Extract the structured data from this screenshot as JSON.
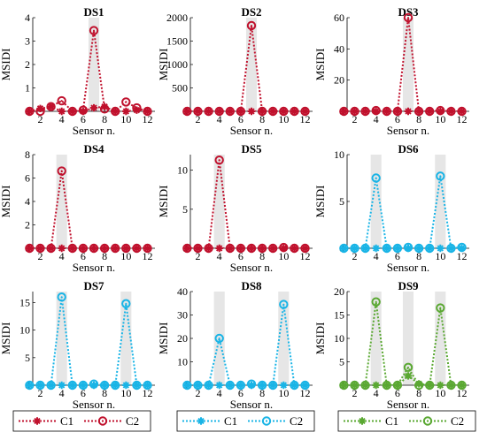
{
  "chart_data": [
    {
      "type": "line",
      "title": "DS1",
      "xlabel": "Sensor n.",
      "ylabel": "MSIDI",
      "ylim": [
        0,
        4
      ],
      "yticks": [
        0,
        1,
        2,
        3,
        4
      ],
      "xticks": [
        2,
        4,
        6,
        8,
        10,
        12
      ],
      "shaded": [
        7
      ],
      "color": "#c0112d",
      "x": [
        1,
        2,
        3,
        4,
        5,
        6,
        7,
        8,
        9,
        10,
        11,
        12
      ],
      "series": [
        {
          "name": "C1",
          "marker": "star",
          "values": [
            0,
            0.12,
            0.2,
            0,
            0,
            0,
            0.15,
            0.2,
            0,
            0,
            0.05,
            0
          ]
        },
        {
          "name": "C2",
          "marker": "circle",
          "values": [
            0,
            0,
            0.2,
            0.45,
            0,
            0.05,
            3.45,
            0.1,
            0,
            0.4,
            0.15,
            0
          ]
        }
      ]
    },
    {
      "type": "line",
      "title": "DS2",
      "xlabel": "Sensor n.",
      "ylabel": "MSIDI",
      "ylim": [
        0,
        2000
      ],
      "yticks": [
        0,
        500,
        1000,
        1500,
        2000
      ],
      "xticks": [
        2,
        4,
        6,
        8,
        10,
        12
      ],
      "shaded": [
        7
      ],
      "color": "#c0112d",
      "x": [
        1,
        2,
        3,
        4,
        5,
        6,
        7,
        8,
        9,
        10,
        11,
        12
      ],
      "series": [
        {
          "name": "C1",
          "marker": "star",
          "values": [
            0,
            0,
            0,
            0,
            0,
            0,
            0,
            0,
            0,
            0,
            0,
            0
          ]
        },
        {
          "name": "C2",
          "marker": "circle",
          "values": [
            0,
            0,
            0,
            0,
            0,
            0,
            1830,
            0,
            0,
            0,
            0,
            0
          ]
        }
      ]
    },
    {
      "type": "line",
      "title": "DS3",
      "xlabel": "Sensor n.",
      "ylabel": "MSIDI",
      "ylim": [
        0,
        60
      ],
      "yticks": [
        0,
        20,
        40,
        60
      ],
      "xticks": [
        2,
        4,
        6,
        8,
        10,
        12
      ],
      "shaded": [
        7
      ],
      "color": "#c0112d",
      "x": [
        1,
        2,
        3,
        4,
        5,
        6,
        7,
        8,
        9,
        10,
        11,
        12
      ],
      "series": [
        {
          "name": "C1",
          "marker": "star",
          "values": [
            0,
            0,
            0,
            0,
            0,
            0,
            0,
            0,
            0,
            0,
            0,
            0
          ]
        },
        {
          "name": "C2",
          "marker": "circle",
          "values": [
            0,
            0,
            0,
            0.5,
            0,
            0,
            60,
            0,
            0,
            0.5,
            0,
            0
          ]
        }
      ]
    },
    {
      "type": "line",
      "title": "DS4",
      "xlabel": "Sensor n.",
      "ylabel": "MSIDI",
      "ylim": [
        0,
        8
      ],
      "yticks": [
        0,
        2,
        4,
        6,
        8
      ],
      "xticks": [
        2,
        4,
        6,
        8,
        10,
        12
      ],
      "shaded": [
        4
      ],
      "color": "#c0112d",
      "x": [
        1,
        2,
        3,
        4,
        5,
        6,
        7,
        8,
        9,
        10,
        11,
        12
      ],
      "series": [
        {
          "name": "C1",
          "marker": "star",
          "values": [
            0,
            0,
            0,
            0,
            0,
            0,
            0,
            0,
            0,
            0,
            0,
            0
          ]
        },
        {
          "name": "C2",
          "marker": "circle",
          "values": [
            0,
            0,
            0,
            6.6,
            0,
            0,
            0,
            0,
            0,
            0,
            0,
            0
          ]
        }
      ]
    },
    {
      "type": "line",
      "title": "DS5",
      "xlabel": "Sensor n.",
      "ylabel": "MSIDI",
      "ylim": [
        0,
        12
      ],
      "yticks": [
        0,
        5,
        10
      ],
      "xticks": [
        2,
        4,
        6,
        8,
        10,
        12
      ],
      "shaded": [
        4
      ],
      "color": "#c0112d",
      "x": [
        1,
        2,
        3,
        4,
        5,
        6,
        7,
        8,
        9,
        10,
        11,
        12
      ],
      "series": [
        {
          "name": "C1",
          "marker": "star",
          "values": [
            0,
            0,
            0,
            0,
            0,
            0,
            0,
            0,
            0,
            0,
            0,
            0
          ]
        },
        {
          "name": "C2",
          "marker": "circle",
          "values": [
            0,
            0,
            0,
            11.3,
            0,
            0,
            0,
            0,
            0,
            0.1,
            0,
            0
          ]
        }
      ]
    },
    {
      "type": "line",
      "title": "DS6",
      "xlabel": "Sensor n.",
      "ylabel": "MSIDI",
      "ylim": [
        0,
        10
      ],
      "yticks": [
        0,
        5,
        10
      ],
      "xticks": [
        2,
        4,
        6,
        8,
        10,
        12
      ],
      "shaded": [
        4,
        10
      ],
      "color": "#19b4e6",
      "x": [
        1,
        2,
        3,
        4,
        5,
        6,
        7,
        8,
        9,
        10,
        11,
        12
      ],
      "series": [
        {
          "name": "C1",
          "marker": "star",
          "values": [
            0,
            0,
            0,
            0,
            0,
            0,
            0,
            0,
            0,
            0,
            0,
            0
          ]
        },
        {
          "name": "C2",
          "marker": "circle",
          "values": [
            0,
            0,
            0,
            7.5,
            0,
            0,
            0.1,
            0,
            0,
            7.7,
            0,
            0.1
          ]
        }
      ]
    },
    {
      "type": "line",
      "title": "DS7",
      "xlabel": "Sensor n.",
      "ylabel": "MSIDI",
      "ylim": [
        0,
        17
      ],
      "yticks": [
        0,
        5,
        10,
        15
      ],
      "xticks": [
        2,
        4,
        6,
        8,
        10,
        12
      ],
      "shaded": [
        4,
        10
      ],
      "color": "#19b4e6",
      "x": [
        1,
        2,
        3,
        4,
        5,
        6,
        7,
        8,
        9,
        10,
        11,
        12
      ],
      "series": [
        {
          "name": "C1",
          "marker": "star",
          "values": [
            0,
            0,
            0,
            0,
            0,
            0,
            0,
            0,
            0,
            0,
            0,
            0
          ]
        },
        {
          "name": "C2",
          "marker": "circle",
          "values": [
            0,
            0,
            0,
            16,
            0,
            0,
            0.2,
            0,
            0,
            14.8,
            0,
            0
          ]
        }
      ]
    },
    {
      "type": "line",
      "title": "DS8",
      "xlabel": "Sensor n.",
      "ylabel": "MSIDI",
      "ylim": [
        0,
        40
      ],
      "yticks": [
        0,
        10,
        20,
        30,
        40
      ],
      "xticks": [
        2,
        4,
        6,
        8,
        10,
        12
      ],
      "shaded": [
        4,
        10
      ],
      "color": "#19b4e6",
      "x": [
        1,
        2,
        3,
        4,
        5,
        6,
        7,
        8,
        9,
        10,
        11,
        12
      ],
      "series": [
        {
          "name": "C1",
          "marker": "star",
          "values": [
            0,
            0,
            0,
            0,
            0,
            0,
            0,
            0,
            0,
            0,
            0,
            0
          ]
        },
        {
          "name": "C2",
          "marker": "circle",
          "values": [
            0,
            0,
            0,
            20,
            0,
            0,
            0.5,
            0,
            0,
            34.5,
            0,
            0
          ]
        }
      ]
    },
    {
      "type": "line",
      "title": "DS9",
      "xlabel": "Sensor n.",
      "ylabel": "MSIDI",
      "ylim": [
        0,
        20
      ],
      "yticks": [
        0,
        5,
        10,
        15,
        20
      ],
      "xticks": [
        2,
        4,
        6,
        8,
        10,
        12
      ],
      "shaded": [
        4,
        7,
        10
      ],
      "color": "#5aa832",
      "x": [
        1,
        2,
        3,
        4,
        5,
        6,
        7,
        8,
        9,
        10,
        11,
        12
      ],
      "series": [
        {
          "name": "C1",
          "marker": "star",
          "values": [
            0,
            0,
            0,
            0,
            0,
            0,
            2,
            0.3,
            0,
            0,
            0,
            0
          ]
        },
        {
          "name": "C2",
          "marker": "circle",
          "values": [
            0,
            0,
            0,
            17.8,
            0,
            0,
            3.8,
            0,
            0,
            16.5,
            0,
            0
          ]
        }
      ]
    }
  ],
  "legends": [
    {
      "color": "#c0112d",
      "c1": "C1",
      "c2": "C2"
    },
    {
      "color": "#19b4e6",
      "c1": "C1",
      "c2": "C2"
    },
    {
      "color": "#5aa832",
      "c1": "C1",
      "c2": "C2"
    }
  ]
}
